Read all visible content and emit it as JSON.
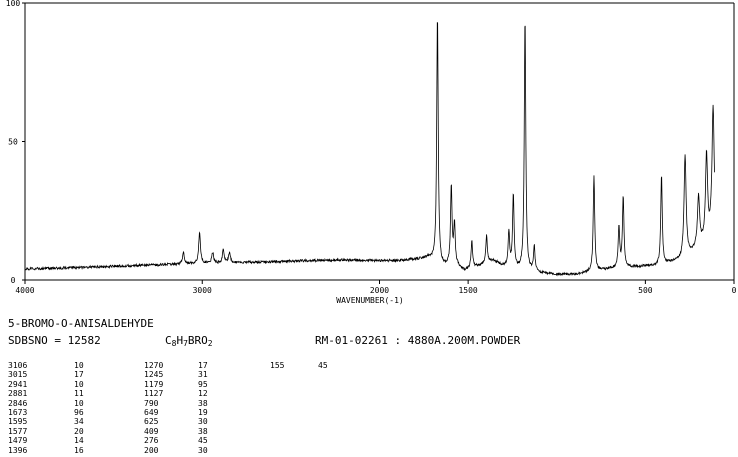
{
  "chart_data": {
    "type": "line",
    "x_axis": {
      "label": "WAVENUMBER(-1)",
      "ticks": [
        "4000",
        "3000",
        "2000",
        "1500",
        "500",
        "0"
      ],
      "xlim": [
        4000,
        0
      ]
    },
    "y_axis": {
      "ticks": [
        "100",
        "50",
        "0"
      ],
      "ylim": [
        0,
        100
      ]
    },
    "baseline": [
      [
        4000,
        4
      ],
      [
        3700,
        4.5
      ],
      [
        3400,
        5.2
      ],
      [
        3200,
        5.6
      ],
      [
        3000,
        6
      ],
      [
        2800,
        6.3
      ],
      [
        2600,
        6.6
      ],
      [
        2400,
        7
      ],
      [
        2200,
        7.2
      ],
      [
        2000,
        7
      ],
      [
        1900,
        7
      ],
      [
        1800,
        7.5
      ],
      [
        1720,
        8
      ],
      [
        1650,
        5
      ],
      [
        1600,
        5
      ],
      [
        1560,
        5
      ],
      [
        1520,
        3.5
      ],
      [
        1480,
        4.5
      ],
      [
        1440,
        5
      ],
      [
        1400,
        6
      ],
      [
        1360,
        7
      ],
      [
        1300,
        5
      ],
      [
        1260,
        4.5
      ],
      [
        1200,
        3.5
      ],
      [
        1150,
        3
      ],
      [
        1100,
        2.5
      ],
      [
        1000,
        2
      ],
      [
        900,
        2
      ],
      [
        850,
        2.5
      ],
      [
        800,
        3
      ],
      [
        750,
        3.5
      ],
      [
        700,
        4
      ],
      [
        650,
        4.5
      ],
      [
        600,
        4.5
      ],
      [
        500,
        5
      ],
      [
        450,
        5
      ],
      [
        400,
        5.5
      ],
      [
        350,
        6.5
      ],
      [
        300,
        7
      ],
      [
        250,
        9
      ],
      [
        200,
        12
      ],
      [
        170,
        13
      ],
      [
        140,
        15
      ],
      [
        120,
        20
      ]
    ],
    "peaks": [
      {
        "x": 3106,
        "y": 10
      },
      {
        "x": 3015,
        "y": 17
      },
      {
        "x": 2941,
        "y": 10
      },
      {
        "x": 2881,
        "y": 11
      },
      {
        "x": 2846,
        "y": 10
      },
      {
        "x": 1673,
        "y": 96
      },
      {
        "x": 1595,
        "y": 34
      },
      {
        "x": 1577,
        "y": 20
      },
      {
        "x": 1479,
        "y": 14
      },
      {
        "x": 1396,
        "y": 16
      },
      {
        "x": 1270,
        "y": 17
      },
      {
        "x": 1245,
        "y": 31
      },
      {
        "x": 1179,
        "y": 95
      },
      {
        "x": 1127,
        "y": 12
      },
      {
        "x": 790,
        "y": 38
      },
      {
        "x": 649,
        "y": 19
      },
      {
        "x": 625,
        "y": 30
      },
      {
        "x": 409,
        "y": 38
      },
      {
        "x": 276,
        "y": 45
      },
      {
        "x": 200,
        "y": 30
      },
      {
        "x": 155,
        "y": 45
      },
      {
        "x": 118,
        "y": 62
      }
    ]
  },
  "info": {
    "compound": "5-BROMO-O-ANISALDEHYDE",
    "sdbsno": "SDBSNO = 12582",
    "formula": {
      "c": "C",
      "c_n": "8",
      "h": "H",
      "h_n": "7",
      "rest": "BRO",
      "o_n": "2"
    },
    "method": "RM-01-02261 : 4880A.200M.POWDER"
  },
  "peak_table": [
    [
      "3106",
      "10",
      "1270",
      "17",
      "155",
      "45"
    ],
    [
      "3015",
      "17",
      "1245",
      "31",
      "",
      ""
    ],
    [
      "2941",
      "10",
      "1179",
      "95",
      "",
      ""
    ],
    [
      "2881",
      "11",
      "1127",
      "12",
      "",
      ""
    ],
    [
      "2846",
      "10",
      "790",
      "38",
      "",
      ""
    ],
    [
      "1673",
      "96",
      "649",
      "19",
      "",
      ""
    ],
    [
      "1595",
      "34",
      "625",
      "30",
      "",
      ""
    ],
    [
      "1577",
      "20",
      "409",
      "38",
      "",
      ""
    ],
    [
      "1479",
      "14",
      "276",
      "45",
      "",
      ""
    ],
    [
      "1396",
      "16",
      "200",
      "30",
      "",
      ""
    ]
  ]
}
